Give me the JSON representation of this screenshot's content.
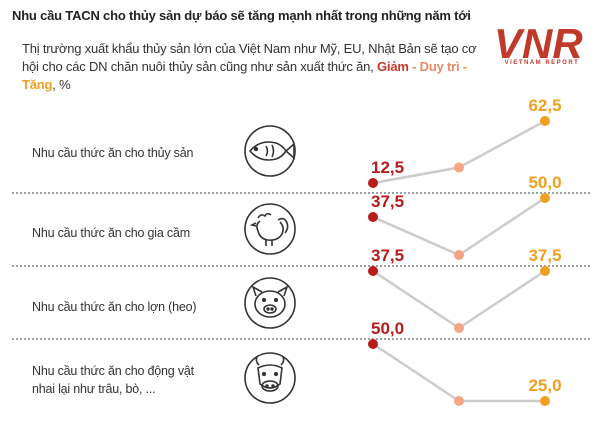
{
  "header": {
    "title": "Nhu cầu TACN cho thủy sản dự báo sẽ tăng mạnh nhất trong những năm tới",
    "subtitle_main": "Thị trường xuất khẩu thủy sản lớn của Việt Nam như Mỹ, EU, Nhật Bản sẽ tạo cơ hội cho các DN chăn nuôi thủy sản cũng như sản xuất thức ăn,",
    "legend_decrease": "Giảm",
    "legend_sep": " - ",
    "legend_maintain": "Duy trì",
    "legend_increase": "Tăng",
    "subtitle_unit": ", %"
  },
  "logo": {
    "mark": "VNR",
    "tagline": "VIETNAM REPORT",
    "color": "#c0392b"
  },
  "colors": {
    "decrease": "#b71c1c",
    "maintain": "#f4a582",
    "increase": "#f0a020",
    "line": "#cccccc",
    "icon": "#333333",
    "divider": "#9aa0a6"
  },
  "chart_data": {
    "type": "line",
    "categories": [
      "Giảm",
      "Duy trì",
      "Tăng"
    ],
    "rows": [
      {
        "label": "Nhu cầu thức ăn cho thủy sản",
        "icon": "fish-icon",
        "values": [
          12.5,
          25.0,
          62.5
        ],
        "labels": [
          "12,5",
          "",
          "62,5"
        ]
      },
      {
        "label": "Nhu cầu thức ăn cho gia cầm",
        "icon": "rooster-icon",
        "values": [
          37.5,
          12.5,
          50.0
        ],
        "labels": [
          "37,5",
          "",
          "50,0"
        ]
      },
      {
        "label": "Nhu cầu thức ăn cho lợn (heo)",
        "icon": "pig-icon",
        "values": [
          37.5,
          25.0,
          37.5
        ],
        "labels": [
          "37,5",
          "",
          "37,5"
        ]
      },
      {
        "label": "Nhu cầu thức ăn cho động vật nhai lại như trâu, bò, ...",
        "icon": "cow-icon",
        "values": [
          50.0,
          25.0,
          25.0
        ],
        "labels": [
          "50,0",
          "",
          "25,0"
        ]
      }
    ]
  }
}
